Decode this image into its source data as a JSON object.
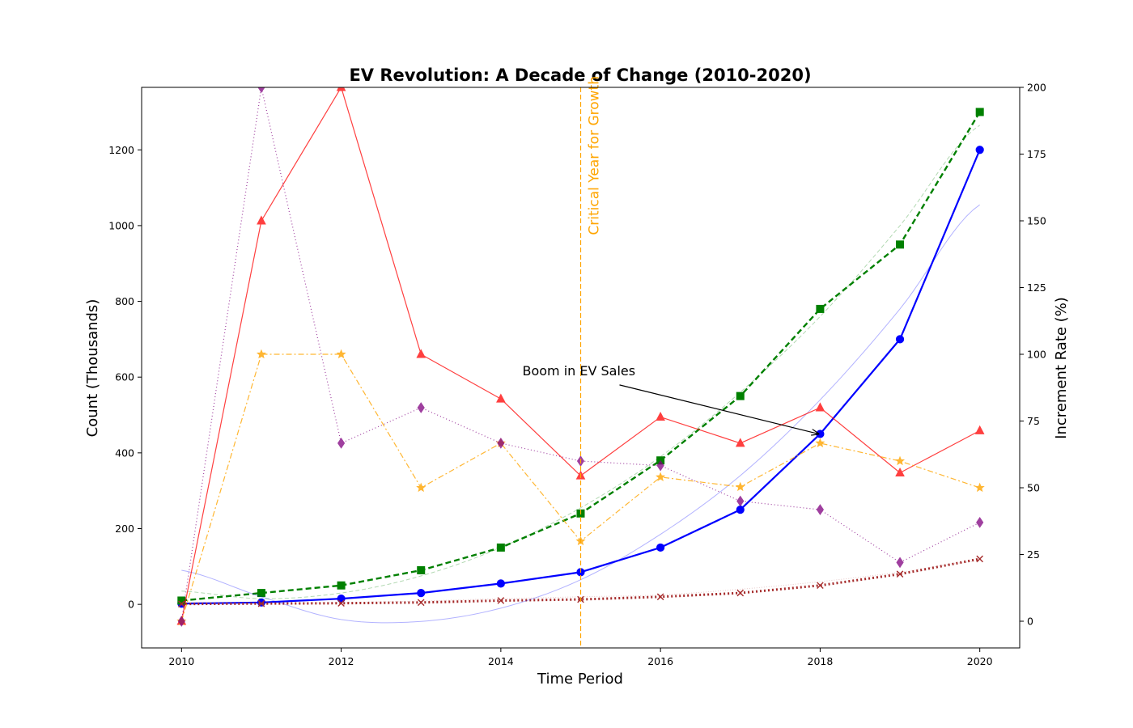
{
  "chart_data": {
    "type": "line",
    "title": "EV Revolution: A Decade of Change (2010-2020)",
    "xlabel": "Time Period",
    "ylabel_left": "Count (Thousands)",
    "ylabel_right": "Increment Rate (%)",
    "x": [
      2010,
      2011,
      2012,
      2013,
      2014,
      2015,
      2016,
      2017,
      2018,
      2019,
      2020
    ],
    "xlim": [
      2009.5,
      2020.5
    ],
    "ylim_left": [
      -115,
      1365
    ],
    "ylim_right": [
      -10,
      200
    ],
    "x_ticks": [
      2010,
      2012,
      2014,
      2016,
      2018,
      2020
    ],
    "y_ticks_left": [
      0,
      200,
      400,
      600,
      800,
      1000,
      1200
    ],
    "y_ticks_right": [
      0,
      25,
      50,
      75,
      100,
      125,
      150,
      175,
      200
    ],
    "grid": false,
    "series": [
      {
        "axis": "left",
        "color": "#0000ff",
        "width": 2.2,
        "dash": "",
        "marker": "circle",
        "opacity": 1,
        "fit": false,
        "values": [
          2,
          5,
          15,
          30,
          55,
          85,
          150,
          250,
          450,
          700,
          1200
        ]
      },
      {
        "axis": "left",
        "color": "#008000",
        "width": 2.4,
        "dash": "7,4",
        "marker": "square",
        "opacity": 1,
        "fit": false,
        "values": [
          10,
          30,
          50,
          90,
          150,
          240,
          380,
          550,
          780,
          950,
          1300
        ]
      },
      {
        "axis": "left",
        "color": "#a52a2a",
        "width": 3,
        "dash": "2,3",
        "marker": "x",
        "opacity": 1,
        "fit": false,
        "values": [
          1,
          2,
          3,
          5,
          10,
          13,
          20,
          30,
          50,
          80,
          120
        ]
      },
      {
        "axis": "left",
        "color": "#0000ff",
        "width": 1,
        "dash": "",
        "marker": "none",
        "opacity": 0.3,
        "fit": true,
        "values": [
          90,
          20,
          -40,
          -45,
          -10,
          65,
          185,
          340,
          540,
          780,
          1055
        ]
      },
      {
        "axis": "left",
        "color": "#008000",
        "width": 1,
        "dash": "5,3",
        "marker": "none",
        "opacity": 0.3,
        "fit": true,
        "values": [
          35,
          15,
          30,
          75,
          150,
          255,
          390,
          560,
          760,
          1000,
          1265
        ]
      },
      {
        "axis": "left",
        "color": "#a52a2a",
        "width": 1,
        "dash": "1,2",
        "marker": "none",
        "opacity": 0.25,
        "fit": true,
        "values": [
          5,
          3,
          5,
          9,
          15,
          20,
          25,
          40,
          60,
          85,
          115
        ]
      },
      {
        "axis": "right",
        "color": "#ff0000",
        "width": 1.2,
        "dash": "",
        "marker": "triangle",
        "opacity": 0.75,
        "fit": false,
        "values": [
          0,
          150,
          200,
          100,
          83.3,
          54.5,
          76.5,
          66.7,
          80,
          55.6,
          71.4
        ]
      },
      {
        "axis": "right",
        "color": "#ffa500",
        "width": 1.2,
        "dash": "7,3,2,3",
        "marker": "star",
        "opacity": 0.8,
        "fit": false,
        "values": [
          0,
          100,
          100,
          50,
          66.7,
          30,
          54,
          50.3,
          66.7,
          60,
          50
        ]
      },
      {
        "axis": "right",
        "color": "#800080",
        "width": 1.2,
        "dash": "1,3",
        "marker": "diamond",
        "opacity": 0.75,
        "fit": false,
        "values": [
          0,
          200,
          66.7,
          80,
          66.7,
          60,
          58.3,
          45,
          41.8,
          22,
          37
        ]
      }
    ],
    "vline": {
      "x": 2015,
      "color": "#ffa500",
      "label": "Critical Year for Growth"
    },
    "annotation": {
      "text": "Boom in EV Sales",
      "text_x": 2014.27,
      "text_y": 605,
      "arrow_x": 2018,
      "arrow_y": 450
    }
  }
}
